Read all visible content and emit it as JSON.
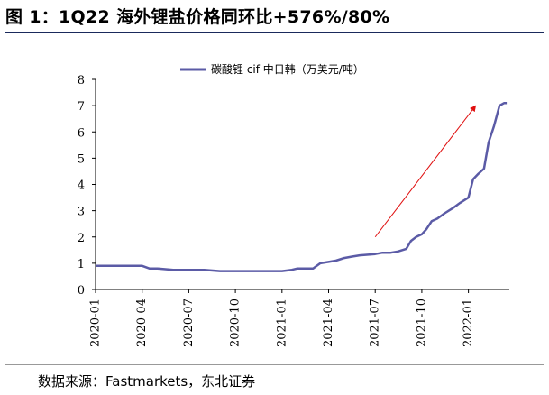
{
  "figure": {
    "title": "图 1：1Q22 海外锂盐价格同环比+576%/80%",
    "source": "数据来源：Fastmarkets，东北证券"
  },
  "chart_data": {
    "type": "line",
    "series": [
      {
        "name": "碳酸锂 cif 中日韩（万美元/吨）",
        "color": "#5b5ba6",
        "x": [
          "2020-01",
          "2020-02",
          "2020-03",
          "2020-04",
          "2020-04-15",
          "2020-05",
          "2020-06",
          "2020-07",
          "2020-08",
          "2020-09",
          "2020-10",
          "2020-11",
          "2020-12",
          "2021-01",
          "2021-01-20",
          "2021-02",
          "2021-03",
          "2021-03-15",
          "2021-04",
          "2021-04-15",
          "2021-05",
          "2021-05-15",
          "2021-06",
          "2021-07",
          "2021-07-15",
          "2021-08",
          "2021-08-15",
          "2021-09",
          "2021-09-10",
          "2021-09-20",
          "2021-10",
          "2021-10-10",
          "2021-10-20",
          "2021-11",
          "2021-11-15",
          "2021-12",
          "2021-12-15",
          "2022-01",
          "2022-01-10",
          "2022-01-20",
          "2022-02",
          "2022-02-10",
          "2022-02-20",
          "2022-03",
          "2022-03-10",
          "2022-03-15"
        ],
        "y": [
          0.9,
          0.9,
          0.9,
          0.9,
          0.8,
          0.8,
          0.75,
          0.75,
          0.75,
          0.7,
          0.7,
          0.7,
          0.7,
          0.7,
          0.75,
          0.8,
          0.8,
          1.0,
          1.05,
          1.1,
          1.2,
          1.25,
          1.3,
          1.35,
          1.4,
          1.4,
          1.45,
          1.55,
          1.85,
          2.0,
          2.1,
          2.3,
          2.6,
          2.7,
          2.9,
          3.1,
          3.3,
          3.5,
          4.2,
          4.4,
          4.6,
          5.6,
          6.2,
          7.0,
          7.1,
          7.1
        ]
      }
    ],
    "xlabel": "",
    "ylabel": "",
    "ylim": [
      0,
      8
    ],
    "yticks": [
      0,
      1,
      2,
      3,
      4,
      5,
      6,
      7,
      8
    ],
    "xticks": [
      "2020-01",
      "2020-04",
      "2020-07",
      "2020-10",
      "2021-01",
      "2021-04",
      "2021-07",
      "2021-10",
      "2022-01"
    ],
    "xlim": [
      "2020-01",
      "2022-03-20"
    ],
    "grid": false,
    "legend": "top-center",
    "annotations": [
      {
        "type": "arrow",
        "color": "#e01010",
        "from": [
          "2021-07",
          2.0
        ],
        "to": [
          "2022-01-15",
          7.0
        ]
      }
    ]
  }
}
